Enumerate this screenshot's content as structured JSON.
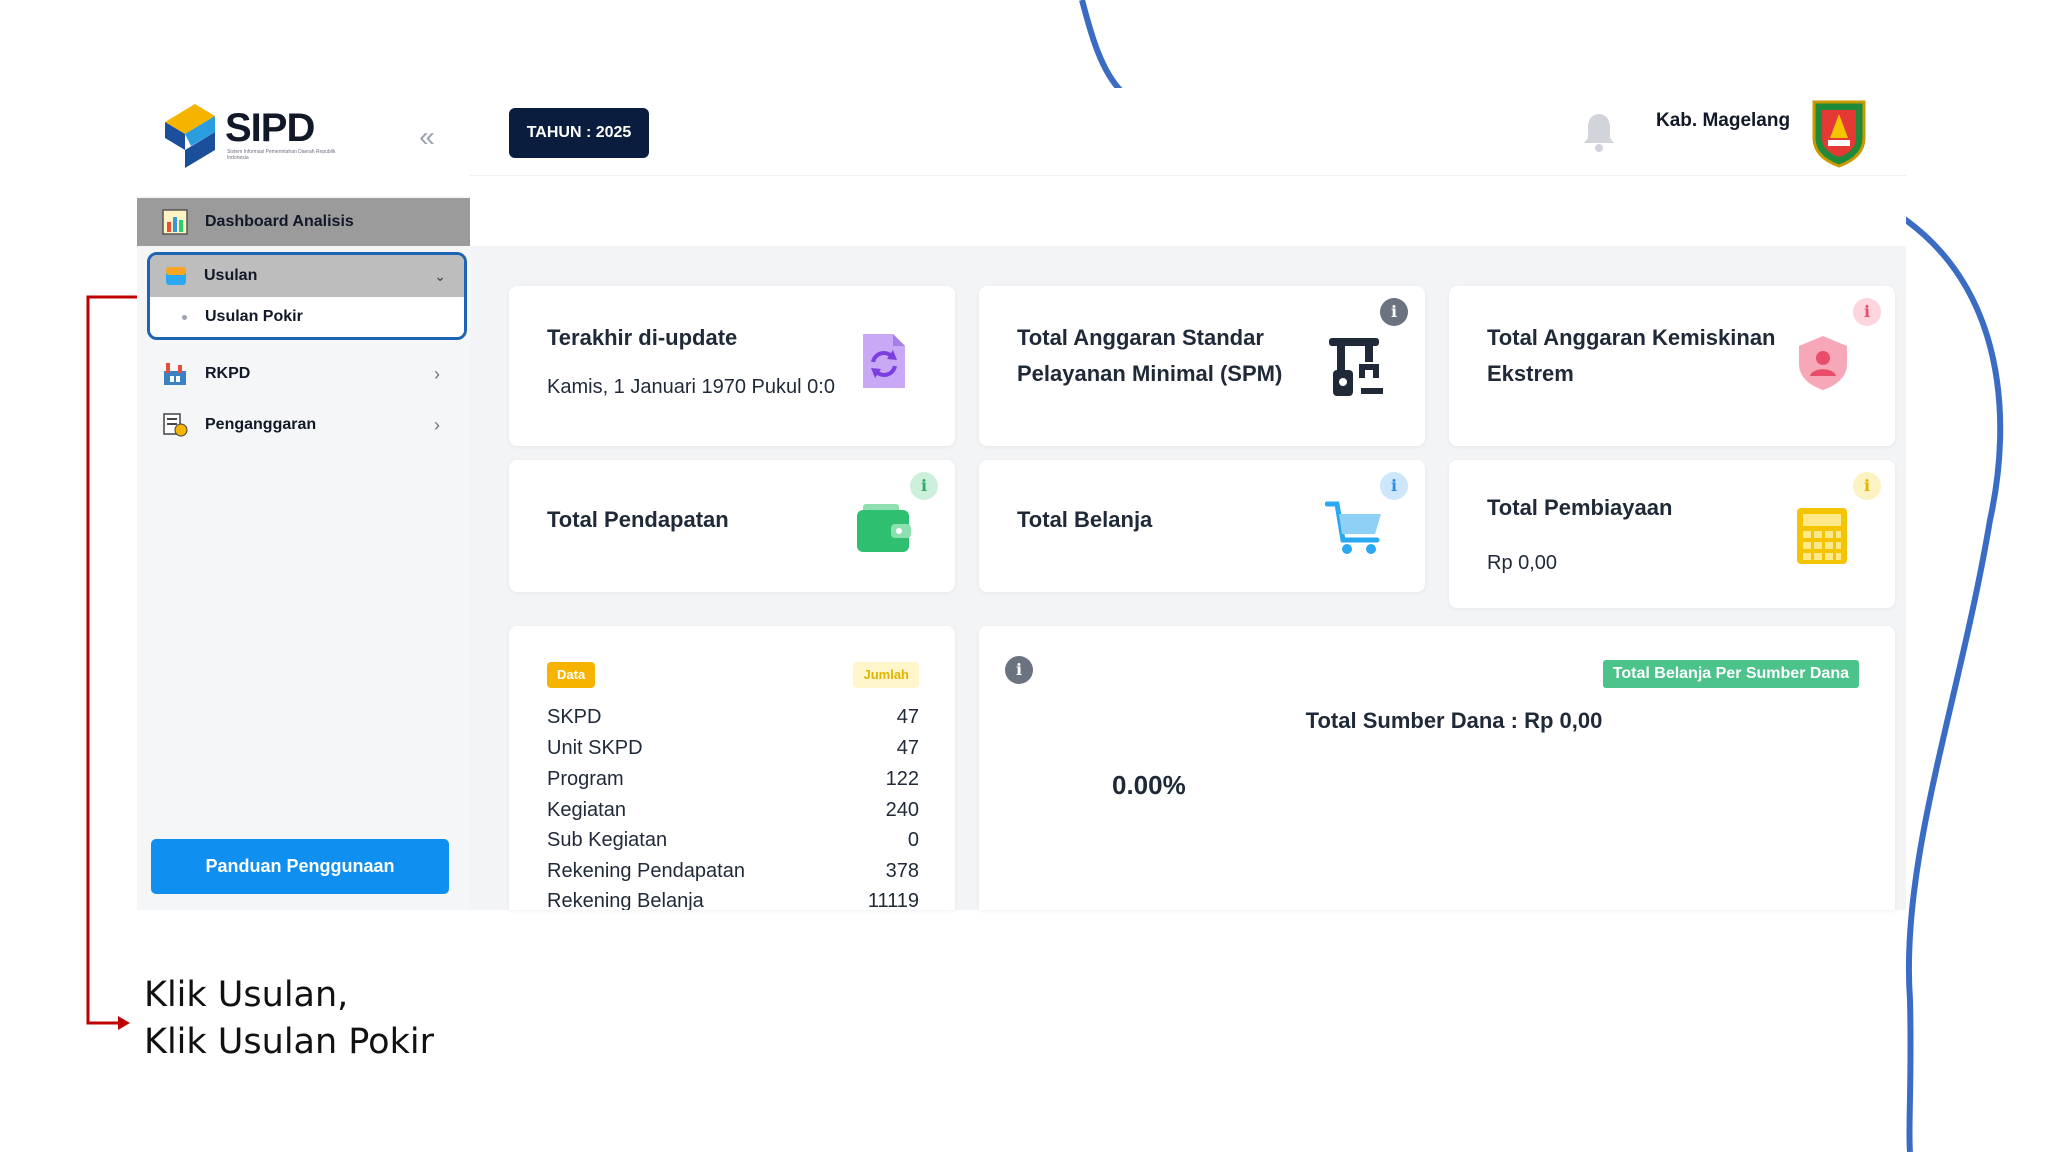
{
  "app": {
    "logo_text": "SIPD",
    "logo_subtitle": "Sistem Informasi Pemerintahan Daerah Republik Indonesia"
  },
  "sidebar": {
    "collapse_icon": "double-chevron-left-icon",
    "items": [
      {
        "label": "Dashboard Analisis",
        "icon": "chart-bar-icon",
        "active": true
      },
      {
        "label": "Usulan",
        "icon": "folder-icon",
        "expanded": true,
        "children": [
          {
            "label": "Usulan Pokir"
          }
        ]
      },
      {
        "label": "RKPD",
        "icon": "factory-icon"
      },
      {
        "label": "Penganggaran",
        "icon": "budget-icon"
      }
    ],
    "help_button": "Panduan Penggunaan"
  },
  "header": {
    "year_badge": "TAHUN : 2025",
    "notification_icon": "bell-icon",
    "organization": "Kab. Magelang",
    "crest_icon": "regional-crest-icon"
  },
  "cards": {
    "last_update": {
      "title": "Terakhir di-update",
      "value": "Kamis, 1 Januari 1970 Pukul 0:0",
      "icon": "refresh-document-icon"
    },
    "spm": {
      "title_line1": "Total Anggaran Standar",
      "title_line2": "Pelayanan Minimal (SPM)",
      "icon": "robot-arm-icon"
    },
    "kemiskinan": {
      "title_line1": "Total Anggaran Kemiskinan",
      "title_line2": "Ekstrem",
      "icon": "shield-person-icon"
    },
    "pendapatan": {
      "title": "Total Pendapatan",
      "icon": "wallet-icon"
    },
    "belanja": {
      "title": "Total Belanja",
      "icon": "cart-icon"
    },
    "pembiayaan": {
      "title": "Total Pembiayaan",
      "value": "Rp 0,00",
      "icon": "calculator-icon"
    }
  },
  "info_label": "i",
  "stats": {
    "header_data": "Data",
    "header_jumlah": "Jumlah",
    "rows": [
      {
        "label": "SKPD",
        "value": "47"
      },
      {
        "label": "Unit SKPD",
        "value": "47"
      },
      {
        "label": "Program",
        "value": "122"
      },
      {
        "label": "Kegiatan",
        "value": "240"
      },
      {
        "label": "Sub Kegiatan",
        "value": "0"
      },
      {
        "label": "Rekening Pendapatan",
        "value": "378"
      },
      {
        "label": "Rekening Belanja",
        "value": "11119"
      }
    ]
  },
  "sumber_dana": {
    "tag": "Total Belanja Per Sumber Dana",
    "total": "Total Sumber Dana : Rp 0,00",
    "percent": "0.00%"
  },
  "annotation": {
    "line1": "Klik Usulan,",
    "line2": "Klik Usulan Pokir"
  },
  "colors": {
    "navy": "#0a1d3f",
    "primary": "#0f8ff0",
    "highlight": "#1f64b4",
    "arrow": "#c00000",
    "green": "#4cc38a",
    "curve": "#3b6cc4"
  }
}
